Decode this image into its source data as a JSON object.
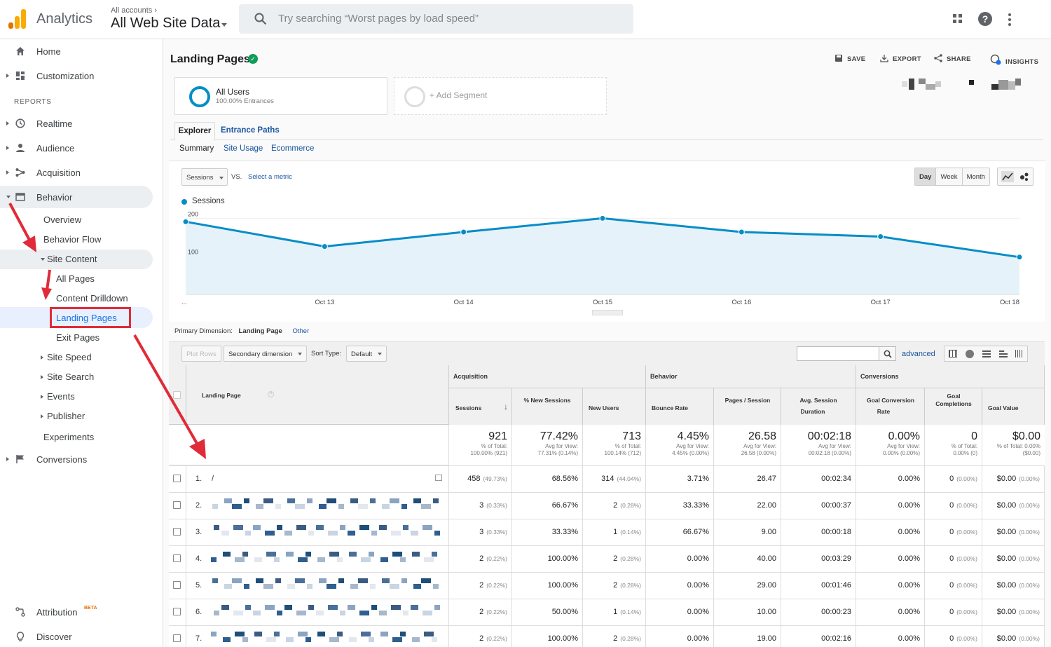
{
  "app": {
    "name": "Analytics",
    "account_crumb": "All accounts",
    "property": "All Web Site Data"
  },
  "search": {
    "placeholder": "Try searching “Worst pages by load speed”"
  },
  "colors": {
    "accent": "#058dc7",
    "link": "#1a55a0",
    "highlight": "#e02b39",
    "logo_orange": "#f9ab00",
    "logo_dark": "#e37400"
  },
  "sidebar": {
    "home": "Home",
    "customization": "Customization",
    "reports_header": "REPORTS",
    "realtime": "Realtime",
    "audience": "Audience",
    "acquisition": "Acquisition",
    "behavior": "Behavior",
    "behavior_items": {
      "overview": "Overview",
      "behavior_flow": "Behavior Flow",
      "site_content": "Site Content",
      "all_pages": "All Pages",
      "content_drilldown": "Content Drilldown",
      "landing_pages": "Landing Pages",
      "exit_pages": "Exit Pages",
      "site_speed": "Site Speed",
      "site_search": "Site Search",
      "events": "Events",
      "publisher": "Publisher",
      "experiments": "Experiments"
    },
    "conversions": "Conversions",
    "attribution": "Attribution",
    "attribution_badge": "BETA",
    "discover": "Discover"
  },
  "report": {
    "title": "Landing Pages",
    "actions": {
      "save": "SAVE",
      "export": "EXPORT",
      "share": "SHARE",
      "insights": "INSIGHTS"
    },
    "segment1": {
      "name": "All Users",
      "sub": "100.00% Entrances"
    },
    "segment2": {
      "name": "+ Add Segment"
    },
    "tabs": {
      "explorer": "Explorer",
      "entrance_paths": "Entrance Paths"
    },
    "subtabs": {
      "summary": "Summary",
      "site_usage": "Site Usage",
      "ecommerce": "Ecommerce"
    },
    "metric": "Sessions",
    "vs": "VS.",
    "select_metric": "Select a metric",
    "period": {
      "day": "Day",
      "week": "Week",
      "month": "Month"
    },
    "primary_dimension_label": "Primary Dimension:",
    "primary_dimension": "Landing Page",
    "other": "Other",
    "plot_rows": "Plot Rows",
    "secondary_dimension": "Secondary dimension",
    "sort_type_label": "Sort Type:",
    "sort_type": "Default",
    "advanced": "advanced"
  },
  "chart_data": {
    "type": "line",
    "legend": [
      "Sessions"
    ],
    "x": [
      "...",
      "Oct 13",
      "Oct 14",
      "Oct 15",
      "Oct 16",
      "Oct 17",
      "Oct 18"
    ],
    "y_ticks": [
      "200",
      "100"
    ],
    "series": [
      {
        "name": "Sessions",
        "values": [
          191,
          126,
          164,
          200,
          164,
          152,
          98
        ]
      }
    ],
    "ylim": [
      0,
      210
    ],
    "grid": true
  },
  "table": {
    "groups": {
      "acquisition": "Acquisition",
      "behavior": "Behavior",
      "conversions": "Conversions"
    },
    "columns": {
      "landing_page": "Landing Page",
      "sessions": "Sessions",
      "new_sessions": "% New Sessions",
      "new_users": "New Users",
      "bounce_rate": "Bounce Rate",
      "pages_session": "Pages / Session",
      "avg_session_1": "Avg. Session",
      "avg_session_2": "Duration",
      "goal_conv_1": "Goal Conversion",
      "goal_conv_2": "Rate",
      "goal_comp_1": "Goal",
      "goal_comp_2": "Completions",
      "goal_value": "Goal Value"
    },
    "totals": {
      "sessions": "921",
      "sessions_sub1": "% of Total:",
      "sessions_sub2": "100.00% (921)",
      "new_sessions": "77.42%",
      "new_sessions_sub1": "Avg for View:",
      "new_sessions_sub2": "77.31% (0.14%)",
      "new_users": "713",
      "new_users_sub1": "% of Total:",
      "new_users_sub2": "100.14% (712)",
      "bounce": "4.45%",
      "bounce_sub1": "Avg for View:",
      "bounce_sub2": "4.45% (0.00%)",
      "pages": "26.58",
      "pages_sub1": "Avg for View:",
      "pages_sub2": "26.58 (0.00%)",
      "duration": "00:02:18",
      "duration_sub1": "Avg for View:",
      "duration_sub2": "00:02:18 (0.00%)",
      "conv": "0.00%",
      "conv_sub1": "Avg for View:",
      "conv_sub2": "0.00% (0.00%)",
      "comp": "0",
      "comp_sub1": "% of Total:",
      "comp_sub2": "0.00% (0)",
      "value": "$0.00",
      "value_sub1": "% of Total: 0.00%",
      "value_sub2": "($0.00)"
    },
    "rows": [
      {
        "n": "1.",
        "page": "/",
        "sessions": "458",
        "sessions_pct": "(49.73%)",
        "new_sessions": "68.56%",
        "new_users": "314",
        "new_users_pct": "(44.04%)",
        "bounce": "3.71%",
        "pages": "26.47",
        "duration": "00:02:34",
        "conv": "0.00%",
        "comp": "0",
        "comp_pct": "(0.00%)",
        "value": "$0.00",
        "value_pct": "(0.00%)"
      },
      {
        "n": "2.",
        "page": "",
        "sessions": "3",
        "sessions_pct": "(0.33%)",
        "new_sessions": "66.67%",
        "new_users": "2",
        "new_users_pct": "(0.28%)",
        "bounce": "33.33%",
        "pages": "22.00",
        "duration": "00:00:37",
        "conv": "0.00%",
        "comp": "0",
        "comp_pct": "(0.00%)",
        "value": "$0.00",
        "value_pct": "(0.00%)"
      },
      {
        "n": "3.",
        "page": "",
        "sessions": "3",
        "sessions_pct": "(0.33%)",
        "new_sessions": "33.33%",
        "new_users": "1",
        "new_users_pct": "(0.14%)",
        "bounce": "66.67%",
        "pages": "9.00",
        "duration": "00:00:18",
        "conv": "0.00%",
        "comp": "0",
        "comp_pct": "(0.00%)",
        "value": "$0.00",
        "value_pct": "(0.00%)"
      },
      {
        "n": "4.",
        "page": "",
        "sessions": "2",
        "sessions_pct": "(0.22%)",
        "new_sessions": "100.00%",
        "new_users": "2",
        "new_users_pct": "(0.28%)",
        "bounce": "0.00%",
        "pages": "40.00",
        "duration": "00:03:29",
        "conv": "0.00%",
        "comp": "0",
        "comp_pct": "(0.00%)",
        "value": "$0.00",
        "value_pct": "(0.00%)"
      },
      {
        "n": "5.",
        "page": "",
        "sessions": "2",
        "sessions_pct": "(0.22%)",
        "new_sessions": "100.00%",
        "new_users": "2",
        "new_users_pct": "(0.28%)",
        "bounce": "0.00%",
        "pages": "29.00",
        "duration": "00:01:46",
        "conv": "0.00%",
        "comp": "0",
        "comp_pct": "(0.00%)",
        "value": "$0.00",
        "value_pct": "(0.00%)"
      },
      {
        "n": "6.",
        "page": "",
        "sessions": "2",
        "sessions_pct": "(0.22%)",
        "new_sessions": "50.00%",
        "new_users": "1",
        "new_users_pct": "(0.14%)",
        "bounce": "0.00%",
        "pages": "10.00",
        "duration": "00:00:23",
        "conv": "0.00%",
        "comp": "0",
        "comp_pct": "(0.00%)",
        "value": "$0.00",
        "value_pct": "(0.00%)"
      },
      {
        "n": "7.",
        "page": "",
        "sessions": "2",
        "sessions_pct": "(0.22%)",
        "new_sessions": "100.00%",
        "new_users": "2",
        "new_users_pct": "(0.28%)",
        "bounce": "0.00%",
        "pages": "19.00",
        "duration": "00:02:16",
        "conv": "0.00%",
        "comp": "0",
        "comp_pct": "(0.00%)",
        "value": "$0.00",
        "value_pct": "(0.00%)"
      }
    ]
  }
}
